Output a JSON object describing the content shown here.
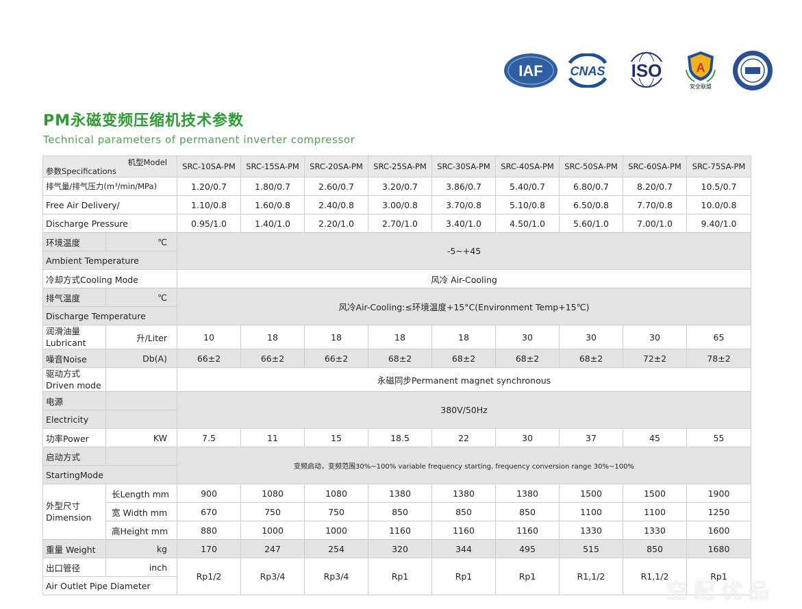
{
  "logos": {
    "iaf": "IAF",
    "cnas": "CNAS",
    "iso": "ISO",
    "shield_letter": "A",
    "shield_caption": "安全联盟"
  },
  "title_cn": "PM永磁变频压缩机技术参数",
  "title_en": "Technical parameters of permanent inverter compressor",
  "table": {
    "header_model": "机型Model",
    "header_spec": "参数Specifications",
    "models": [
      "SRC-10SA-PM",
      "SRC-15SA-PM",
      "SRC-20SA-PM",
      "SRC-25SA-PM",
      "SRC-30SA-PM",
      "SRC-40SA-PM",
      "SRC-50SA-PM",
      "SRC-60SA-PM",
      "SRC-75SA-PM"
    ],
    "delivery_label_1": "排气量/排气压力(m³/min/MPa)",
    "delivery_label_2": "Free Air Delivery/",
    "delivery_label_3": "Discharge Pressure",
    "delivery_rows": [
      [
        "1.20/0.7",
        "1.80/0.7",
        "2.60/0.7",
        "3.20/0.7",
        "3.86/0.7",
        "5.40/0.7",
        "6.80/0.7",
        "8.20/0.7",
        "10.5/0.7"
      ],
      [
        "1.10/0.8",
        "1.60/0.8",
        "2.40/0.8",
        "3.00/0.8",
        "3.70/0.8",
        "5.10/0.8",
        "6.50/0.8",
        "7.70/0.8",
        "10.0/0.8"
      ],
      [
        "0.95/1.0",
        "1.40/1.0",
        "2.20/1.0",
        "2.70/1.0",
        "3.40/1.0",
        "4.50/1.0",
        "5.60/1.0",
        "7.00/1.0",
        "9.40/1.0"
      ]
    ],
    "ambient_cn": "环境温度",
    "ambient_unit": "℃",
    "ambient_en": "Ambient Temperature",
    "ambient_value": "-5~+45",
    "cooling_label": "冷却方式Cooling Mode",
    "cooling_value": "风冷 Air-Cooling",
    "discharge_temp_cn": "排气温度",
    "discharge_temp_unit": "℃",
    "discharge_temp_en": "Discharge Temperature",
    "discharge_temp_value": "风冷Air-Cooling:≤环境温度+15°C(Environment Temp+15℃)",
    "lubricant_cn": "润滑油量",
    "lubricant_en": "Lubricant",
    "lubricant_unit": "升/Liter",
    "lubricant_values": [
      "10",
      "18",
      "18",
      "18",
      "18",
      "30",
      "30",
      "30",
      "65"
    ],
    "noise_label": "噪音Noise",
    "noise_unit": "Db(A)",
    "noise_values": [
      "66±2",
      "66±2",
      "66±2",
      "68±2",
      "68±2",
      "68±2",
      "68±2",
      "72±2",
      "78±2"
    ],
    "driven_cn": "驱动方式",
    "driven_en": "Driven mode",
    "driven_value": "永磁同步Permanent magnet synchronous",
    "power_cn": "电源",
    "power_en": "Electricity",
    "power_value": "380V/50Hz",
    "motor_label": "功率Power",
    "motor_unit": "KW",
    "motor_values": [
      "7.5",
      "11",
      "15",
      "18.5",
      "22",
      "30",
      "37",
      "45",
      "55"
    ],
    "starting_cn": "启动方式",
    "starting_en": "StartingMode",
    "starting_value": "变频启动，变频范围30%~100% variable frequency starting, frequency conversion range 30%~100%",
    "dimension_cn": "外型尺寸",
    "dimension_en": "Dimension",
    "length_label": "长Length mm",
    "length_values": [
      "900",
      "1080",
      "1080",
      "1380",
      "1380",
      "1380",
      "1500",
      "1500",
      "1900"
    ],
    "width_label": "宽 Width mm",
    "width_values": [
      "670",
      "750",
      "750",
      "850",
      "850",
      "850",
      "1100",
      "1100",
      "1250"
    ],
    "height_label": "高Height mm",
    "height_values": [
      "880",
      "1000",
      "1000",
      "1160",
      "1160",
      "1160",
      "1330",
      "1330",
      "1600"
    ],
    "weight_label": "重量 Weight",
    "weight_unit": "kg",
    "weight_values": [
      "170",
      "247",
      "254",
      "320",
      "344",
      "495",
      "515",
      "850",
      "1680"
    ],
    "outlet_cn": "出口管径",
    "outlet_unit": "inch",
    "outlet_en": "Air Outlet Pipe Diameter",
    "outlet_values": [
      "Rp1/2",
      "Rp3/4",
      "Rp3/4",
      "Rp1",
      "Rp1",
      "Rp1",
      "R1,1/2",
      "R1,1/2",
      "Rp1"
    ]
  },
  "watermark": "空配优品",
  "colors": {
    "title_green": "#2e9b36",
    "subtitle_green": "#4aa34e",
    "shade": "#e3e3e3",
    "iaf_blue": "#2f5fa3",
    "cnas_blue": "#1f4f96"
  }
}
